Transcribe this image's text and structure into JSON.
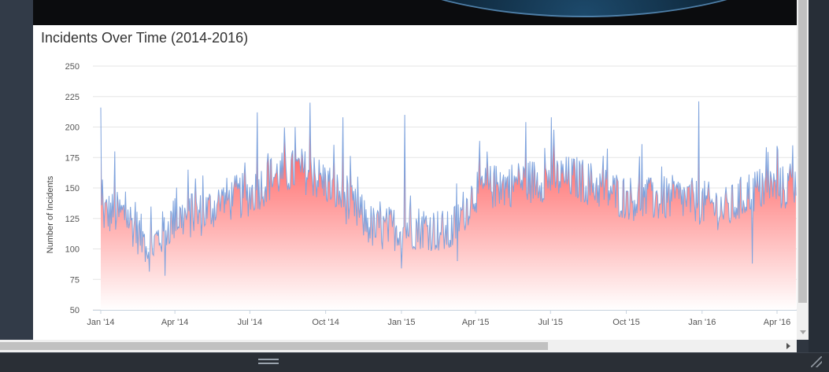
{
  "colors": {
    "line": "#7fa3dd",
    "area_top": "#ff3b3b",
    "area_bottom": "#ffffff",
    "grid": "#e6e6e6",
    "page_bg": "#2f3640"
  },
  "chart_data": {
    "type": "area",
    "title": "Incidents Over Time (2014-2016)",
    "ylabel": "Number of Incidents",
    "xlabel": "",
    "ylim": [
      50,
      250
    ],
    "yticks": [
      50,
      75,
      100,
      125,
      150,
      175,
      200,
      225,
      250
    ],
    "x_range": [
      "2014-01-01",
      "2016-04-30"
    ],
    "x_tick_dates": [
      "2014-01-01",
      "2014-04-01",
      "2014-07-01",
      "2014-10-01",
      "2015-01-01",
      "2015-04-01",
      "2015-07-01",
      "2015-10-01",
      "2016-01-01",
      "2016-04-01"
    ],
    "x_tick_labels": [
      "Jan '14",
      "Apr '14",
      "Jul '14",
      "Oct '14",
      "Jan '15",
      "Apr '15",
      "Jul '15",
      "Oct '15",
      "Jan '16",
      "Apr '16"
    ],
    "grid": true,
    "legend": "none",
    "series_note": "daily values summarised as monthly baseline plus notable spikes",
    "monthly_baseline": [
      {
        "date": "2014-01-01",
        "value": 130
      },
      {
        "date": "2014-02-01",
        "value": 128
      },
      {
        "date": "2014-03-01",
        "value": 100
      },
      {
        "date": "2014-04-01",
        "value": 125
      },
      {
        "date": "2014-05-01",
        "value": 128
      },
      {
        "date": "2014-06-01",
        "value": 140
      },
      {
        "date": "2014-07-01",
        "value": 145
      },
      {
        "date": "2014-08-01",
        "value": 160
      },
      {
        "date": "2014-09-01",
        "value": 165
      },
      {
        "date": "2014-10-01",
        "value": 155
      },
      {
        "date": "2014-11-01",
        "value": 135
      },
      {
        "date": "2014-12-01",
        "value": 115
      },
      {
        "date": "2015-01-01",
        "value": 118
      },
      {
        "date": "2015-02-01",
        "value": 118
      },
      {
        "date": "2015-03-01",
        "value": 112
      },
      {
        "date": "2015-04-01",
        "value": 148
      },
      {
        "date": "2015-05-01",
        "value": 152
      },
      {
        "date": "2015-06-01",
        "value": 155
      },
      {
        "date": "2015-07-01",
        "value": 158
      },
      {
        "date": "2015-08-01",
        "value": 158
      },
      {
        "date": "2015-09-01",
        "value": 150
      },
      {
        "date": "2015-10-01",
        "value": 142
      },
      {
        "date": "2015-11-01",
        "value": 140
      },
      {
        "date": "2015-12-01",
        "value": 142
      },
      {
        "date": "2016-01-01",
        "value": 138
      },
      {
        "date": "2016-02-01",
        "value": 132
      },
      {
        "date": "2016-03-01",
        "value": 148
      },
      {
        "date": "2016-04-01",
        "value": 150
      }
    ],
    "spikes": [
      {
        "date": "2014-01-01",
        "value": 216
      },
      {
        "date": "2014-01-18",
        "value": 180
      },
      {
        "date": "2014-03-20",
        "value": 78
      },
      {
        "date": "2014-07-10",
        "value": 212
      },
      {
        "date": "2014-08-25",
        "value": 200
      },
      {
        "date": "2014-09-12",
        "value": 220
      },
      {
        "date": "2014-10-22",
        "value": 208
      },
      {
        "date": "2015-01-05",
        "value": 210
      },
      {
        "date": "2015-01-01",
        "value": 84
      },
      {
        "date": "2015-03-10",
        "value": 90
      },
      {
        "date": "2015-06-01",
        "value": 204
      },
      {
        "date": "2015-07-02",
        "value": 208
      },
      {
        "date": "2015-10-20",
        "value": 186
      },
      {
        "date": "2015-12-28",
        "value": 221
      },
      {
        "date": "2016-03-02",
        "value": 88
      },
      {
        "date": "2016-04-20",
        "value": 185
      }
    ]
  }
}
